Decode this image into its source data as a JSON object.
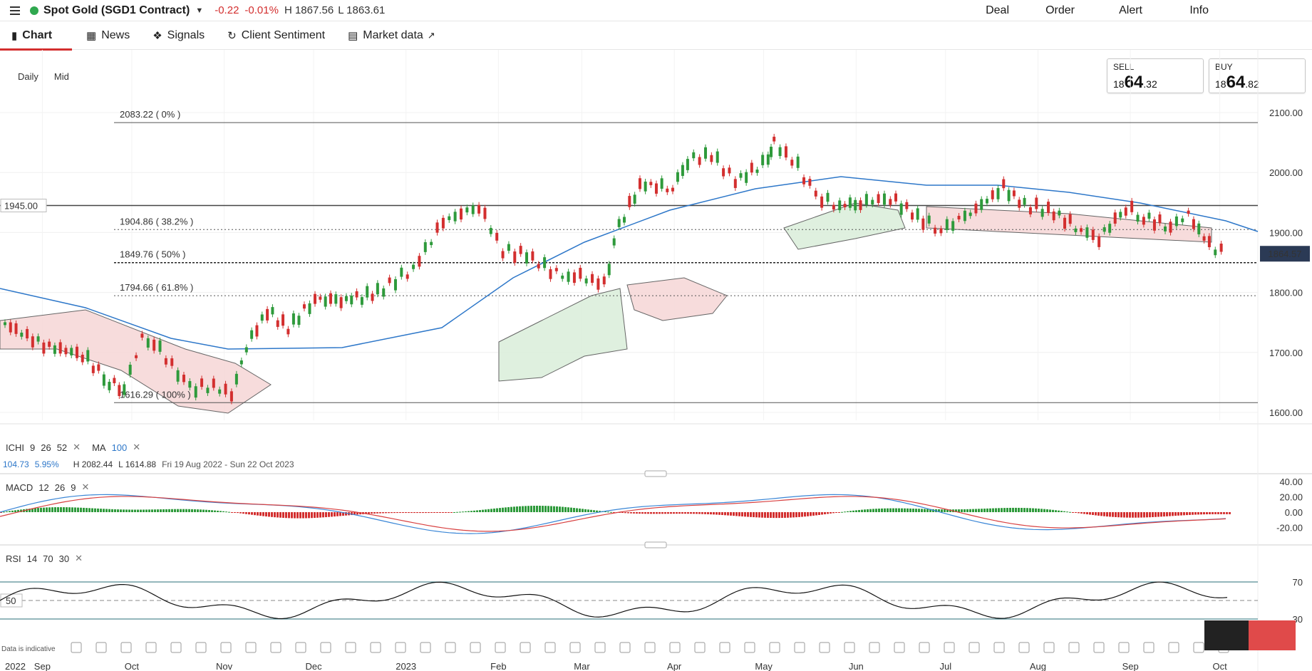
{
  "header": {
    "instrument": "Spot Gold (SGD1 Contract)",
    "change_abs": "-0.22",
    "change_pct": "-0.01%",
    "high": "H 1867.56",
    "low": "L 1863.61",
    "actions": [
      "Deal",
      "Order",
      "Alert",
      "Info"
    ],
    "status_color": "#2fa84f"
  },
  "tabs": [
    {
      "label": "Chart",
      "icon": "candlestick-icon",
      "active": true
    },
    {
      "label": "News",
      "icon": "newspaper-icon",
      "active": false
    },
    {
      "label": "Signals",
      "icon": "signal-icon",
      "active": false
    },
    {
      "label": "Client Sentiment",
      "icon": "sentiment-icon",
      "active": false
    },
    {
      "label": "Market data",
      "icon": "calendar-icon",
      "active": false
    }
  ],
  "timeframe": {
    "period": "Daily",
    "price_type": "Mid"
  },
  "quotes": {
    "sell": {
      "label": "SELL",
      "prefix": "18",
      "big": "64",
      "suffix": ".32"
    },
    "buy": {
      "label": "BUY",
      "prefix": "18",
      "big": "64",
      "suffix": ".82"
    }
  },
  "chart_data": {
    "type": "candlestick",
    "ylim": [
      1600,
      2100
    ],
    "yticks": [
      "2100.00",
      "2000.00",
      "1900.00",
      "1800.00",
      "1700.00",
      "1600.00"
    ],
    "current_price": "1864.57",
    "horizontal_line": "1945.00",
    "fib_levels": [
      {
        "label": "2083.22 ( 0% )",
        "value": 2083.22
      },
      {
        "label": "1904.86 ( 38.2% )",
        "value": 1904.86
      },
      {
        "label": "1849.76 ( 50% )",
        "value": 1849.76
      },
      {
        "label": "1794.66 ( 61.8% )",
        "value": 1794.66
      },
      {
        "label": "1616.29 ( 100% )",
        "value": 1616.29
      }
    ],
    "x_labels": [
      "2022",
      "Sep",
      "Oct",
      "Nov",
      "Dec",
      "2023",
      "Feb",
      "Mar",
      "Apr",
      "May",
      "Jun",
      "Jul",
      "Aug",
      "Sep",
      "Oct"
    ],
    "price_path": [
      [
        "2022-08-19",
        1748
      ],
      [
        "2022-09-01",
        1712
      ],
      [
        "2022-09-14",
        1697
      ],
      [
        "2022-09-23",
        1650
      ],
      [
        "2022-09-28",
        1640
      ],
      [
        "2022-10-04",
        1725
      ],
      [
        "2022-10-10",
        1704
      ],
      [
        "2022-10-20",
        1640
      ],
      [
        "2022-10-28",
        1645
      ],
      [
        "2022-11-03",
        1628
      ],
      [
        "2022-11-08",
        1710
      ],
      [
        "2022-11-15",
        1770
      ],
      [
        "2022-11-22",
        1740
      ],
      [
        "2022-12-01",
        1790
      ],
      [
        "2022-12-08",
        1785
      ],
      [
        "2022-12-15",
        1790
      ],
      [
        "2022-12-22",
        1800
      ],
      [
        "2023-01-03",
        1840
      ],
      [
        "2023-01-13",
        1918
      ],
      [
        "2023-01-25",
        1945
      ],
      [
        "2023-02-02",
        1870
      ],
      [
        "2023-02-10",
        1862
      ],
      [
        "2023-02-22",
        1825
      ],
      [
        "2023-02-28",
        1827
      ],
      [
        "2023-03-08",
        1813
      ],
      [
        "2023-03-13",
        1910
      ],
      [
        "2023-03-20",
        1980
      ],
      [
        "2023-03-31",
        1975
      ],
      [
        "2023-04-05",
        2020
      ],
      [
        "2023-04-13",
        2030
      ],
      [
        "2023-04-21",
        1985
      ],
      [
        "2023-05-02",
        2020
      ],
      [
        "2023-05-04",
        2050
      ],
      [
        "2023-05-12",
        2010
      ],
      [
        "2023-05-18",
        1960
      ],
      [
        "2023-05-26",
        1945
      ],
      [
        "2023-06-02",
        1950
      ],
      [
        "2023-06-12",
        1958
      ],
      [
        "2023-06-23",
        1920
      ],
      [
        "2023-06-29",
        1905
      ],
      [
        "2023-07-07",
        1925
      ],
      [
        "2023-07-20",
        1975
      ],
      [
        "2023-07-27",
        1945
      ],
      [
        "2023-08-04",
        1938
      ],
      [
        "2023-08-15",
        1905
      ],
      [
        "2023-08-21",
        1890
      ],
      [
        "2023-08-30",
        1942
      ],
      [
        "2023-09-05",
        1925
      ],
      [
        "2023-09-14",
        1910
      ],
      [
        "2023-09-20",
        1930
      ],
      [
        "2023-09-27",
        1878
      ],
      [
        "2023-10-03",
        1864
      ]
    ],
    "moving_average": {
      "name": "MA 100",
      "value": "104.73",
      "pct": "5.95%"
    },
    "range_info": {
      "high": "H 2082.44",
      "low": "L 1614.88",
      "dates": "Fri 19 Aug 2022 - Sun 22 Oct 2023"
    },
    "colors": {
      "up": "#2e9a3b",
      "down": "#d32f2f",
      "ma": "#2d77c9",
      "cloud_up": "#dcefdc",
      "cloud_down": "#f7d9d9"
    }
  },
  "indicators": {
    "ichi": {
      "name": "ICHI",
      "params": [
        "9",
        "26",
        "52"
      ]
    },
    "ma": {
      "name": "MA",
      "param": "100"
    },
    "macd": {
      "name": "MACD",
      "params": [
        "12",
        "26",
        "9"
      ],
      "yticks": [
        "40.00",
        "20.00",
        "0.00",
        "-20.00"
      ]
    },
    "rsi": {
      "name": "RSI",
      "params": [
        "14",
        "70",
        "30"
      ],
      "yticks": [
        "70",
        "30"
      ],
      "mid": "50"
    }
  },
  "footer": {
    "data_note": "Data is indicative"
  }
}
